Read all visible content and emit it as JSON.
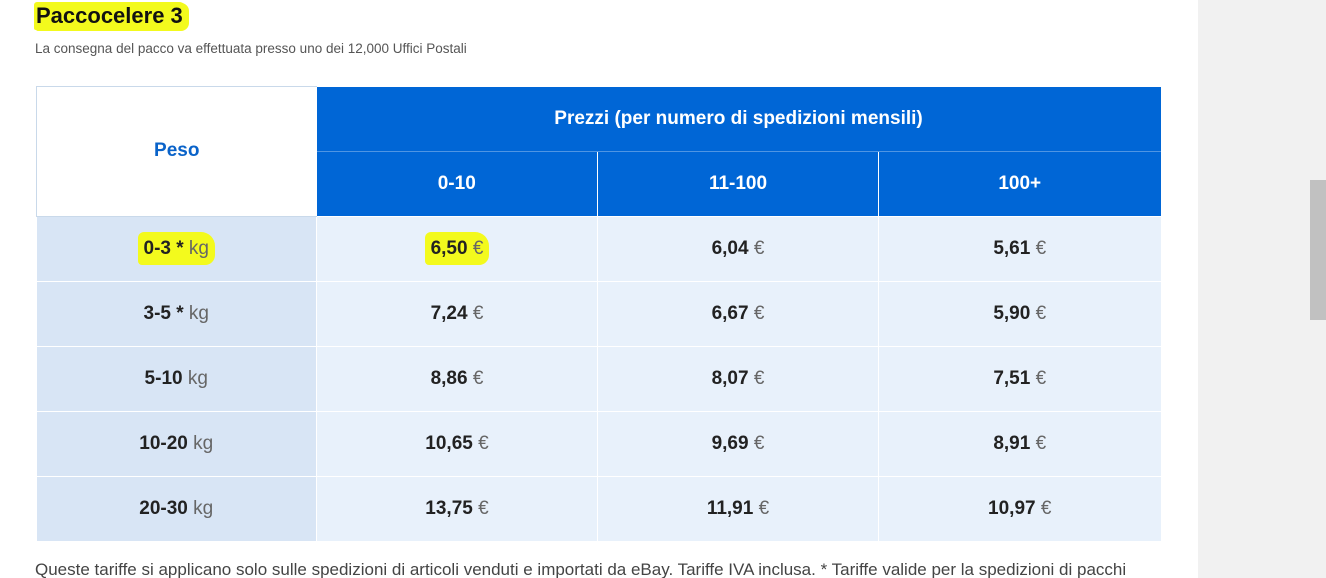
{
  "page": {
    "title": "Paccocelere 3",
    "subtitle": "La consegna del pacco va effettuata presso uno dei 12,000 Uffici Postali",
    "footer": "Queste tariffe si applicano solo sulle spedizioni di articoli venduti e importati da eBay. Tariffe IVA inclusa. * Tariffe valide per la spedizioni di pacchi"
  },
  "table": {
    "weight_header": "Peso",
    "prices_header": "Prezzi (per numero di spedizioni mensili)",
    "columns": [
      "0-10",
      "11-100",
      "100+"
    ],
    "weight_unit": "kg",
    "currency": "€",
    "rows": [
      {
        "weight": "0-3 *",
        "prices": [
          "6,50",
          "6,04",
          "5,61"
        ]
      },
      {
        "weight": "3-5 *",
        "prices": [
          "7,24",
          "6,67",
          "5,90"
        ]
      },
      {
        "weight": "5-10",
        "prices": [
          "8,86",
          "8,07",
          "7,51"
        ]
      },
      {
        "weight": "10-20",
        "prices": [
          "10,65",
          "9,69",
          "8,91"
        ]
      },
      {
        "weight": "20-30",
        "prices": [
          "13,75",
          "11,91",
          "10,97"
        ]
      }
    ]
  },
  "colors": {
    "header_blue": "#0066d6",
    "weight_cell": "#d8e5f5",
    "price_cell": "#e8f1fb",
    "highlight": "#f3fa1d"
  }
}
